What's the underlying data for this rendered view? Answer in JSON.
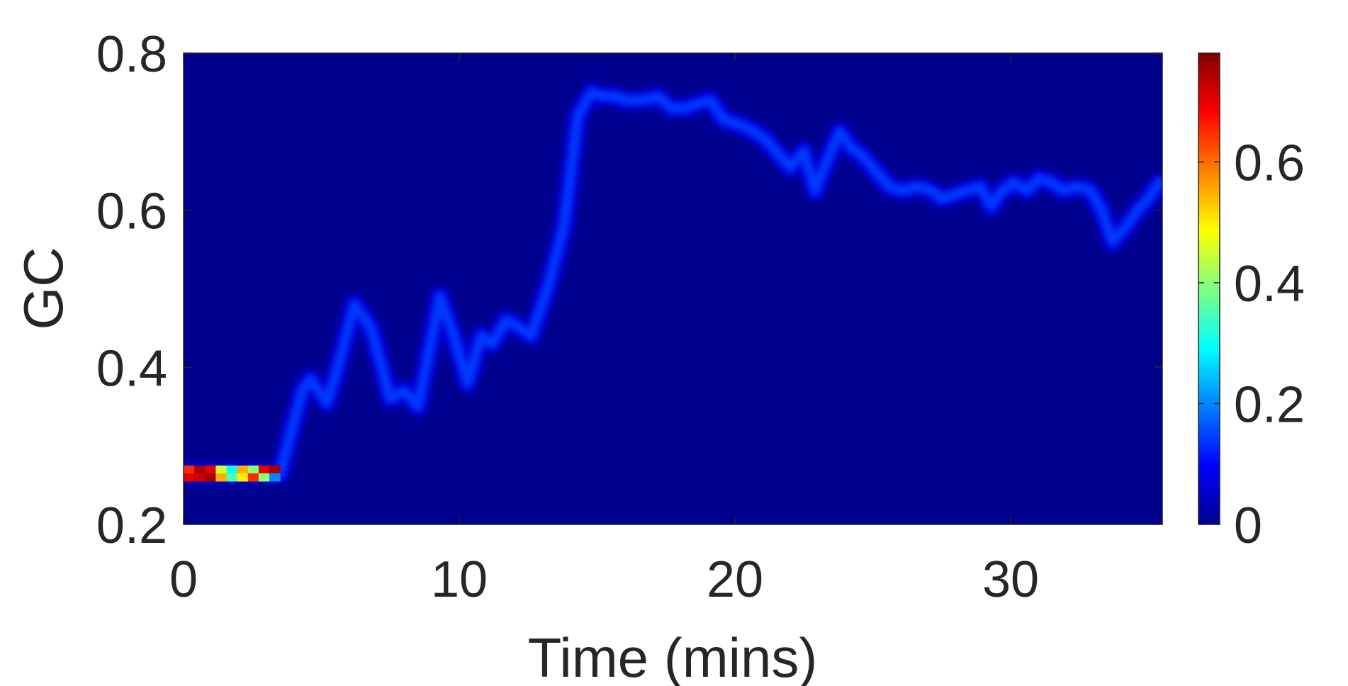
{
  "chart_data": {
    "type": "heatmap",
    "title": "",
    "xlabel": "Time (mins)",
    "ylabel": "GC",
    "xlim": [
      0,
      35.5
    ],
    "ylim": [
      0.2,
      0.8
    ],
    "x_ticks": [
      0,
      10,
      20,
      30
    ],
    "x_tick_labels": [
      "0",
      "10",
      "20",
      "30"
    ],
    "y_ticks": [
      0.2,
      0.4,
      0.6,
      0.8
    ],
    "y_tick_labels": [
      "0.2",
      "0.4",
      "0.6",
      "0.8"
    ],
    "grid": false,
    "colormap": "jet",
    "background_color": "#00008f",
    "colorbar": {
      "limits": [
        0,
        0.78
      ],
      "ticks": [
        0,
        0.2,
        0.4,
        0.6
      ],
      "tick_labels": [
        "0",
        "0.2",
        "0.4",
        "0.6"
      ]
    },
    "band_peak_density": 0.14,
    "band": {
      "time": [
        0,
        1,
        2,
        3,
        3.5,
        4.3,
        4.6,
        5.2,
        5.6,
        6.2,
        6.8,
        7.5,
        8,
        8.5,
        9.3,
        9.8,
        10.3,
        10.8,
        11.2,
        11.7,
        12.2,
        12.6,
        13.2,
        13.8,
        14.3,
        14.8,
        15.2,
        15.6,
        16.1,
        16.7,
        17.2,
        17.7,
        18.2,
        18.6,
        19.1,
        19.6,
        20.1,
        20.7,
        21.1,
        21.5,
        22,
        22.5,
        22.9,
        23.3,
        23.8,
        24.2,
        24.6,
        25.1,
        25.6,
        26.1,
        26.6,
        27.1,
        27.5,
        28,
        28.4,
        28.9,
        29.3,
        29.7,
        30.1,
        30.6,
        31,
        31.5,
        31.9,
        32.4,
        32.9,
        33.3,
        33.7,
        34.2,
        34.6,
        35,
        35.5
      ],
      "gc": [
        0.265,
        0.265,
        0.265,
        0.265,
        0.265,
        0.37,
        0.385,
        0.355,
        0.4,
        0.48,
        0.45,
        0.36,
        0.37,
        0.35,
        0.49,
        0.44,
        0.38,
        0.44,
        0.43,
        0.46,
        0.45,
        0.44,
        0.5,
        0.58,
        0.72,
        0.75,
        0.745,
        0.745,
        0.74,
        0.74,
        0.745,
        0.73,
        0.73,
        0.735,
        0.74,
        0.715,
        0.71,
        0.7,
        0.69,
        0.675,
        0.655,
        0.675,
        0.625,
        0.66,
        0.7,
        0.68,
        0.67,
        0.65,
        0.63,
        0.625,
        0.63,
        0.625,
        0.615,
        0.62,
        0.625,
        0.63,
        0.605,
        0.625,
        0.635,
        0.625,
        0.64,
        0.635,
        0.625,
        0.63,
        0.625,
        0.6,
        0.56,
        0.58,
        0.6,
        0.615,
        0.64
      ]
    },
    "initial_segment": {
      "time_range": [
        0,
        3.5
      ],
      "gc_range": [
        0.255,
        0.275
      ],
      "densities": [
        0.65,
        0.75,
        0.7,
        0.45,
        0.3,
        0.55,
        0.4,
        0.7,
        0.75,
        0.7,
        0.72,
        0.75,
        0.55,
        0.35,
        0.5,
        0.65,
        0.4,
        0.2
      ]
    }
  }
}
